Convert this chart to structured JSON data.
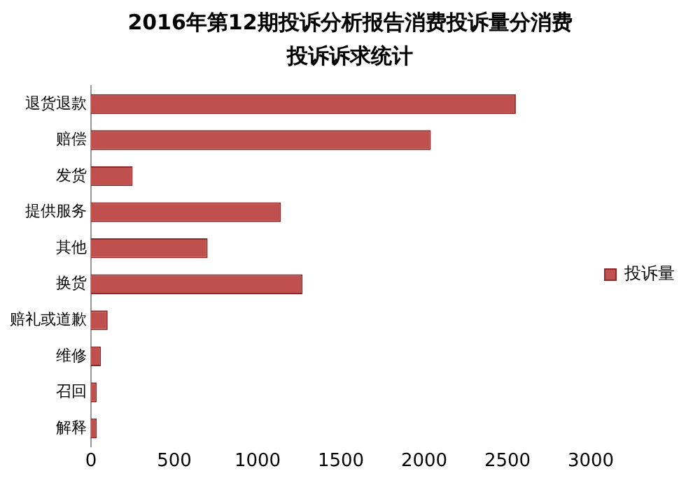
{
  "chart_data": {
    "type": "bar",
    "orientation": "horizontal",
    "title": "2016年第12期投诉分析报告消费投诉量分消费投诉诉求统计",
    "categories": [
      "退货退款",
      "赔偿",
      "发货",
      "提供服务",
      "其他",
      "换货",
      "赔礼或道歉",
      "维修",
      "召回",
      "解释"
    ],
    "series": [
      {
        "name": "投诉量",
        "color": "#c0504d",
        "values": [
          2550,
          2040,
          250,
          1140,
          700,
          1270,
          100,
          60,
          35,
          35
        ]
      }
    ],
    "xlim": [
      0,
      3000
    ],
    "xticks": [
      0,
      500,
      1000,
      1500,
      2000,
      2500,
      3000
    ],
    "grid": false,
    "legend": "right"
  }
}
